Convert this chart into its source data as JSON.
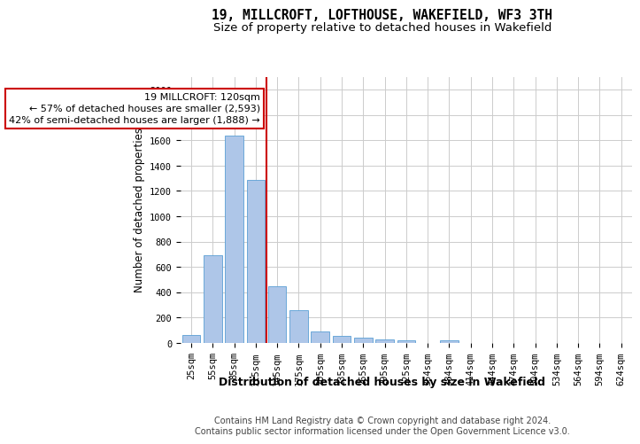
{
  "title": "19, MILLCROFT, LOFTHOUSE, WAKEFIELD, WF3 3TH",
  "subtitle": "Size of property relative to detached houses in Wakefield",
  "xlabel": "Distribution of detached houses by size in Wakefield",
  "ylabel": "Number of detached properties",
  "footer_line1": "Contains HM Land Registry data © Crown copyright and database right 2024.",
  "footer_line2": "Contains public sector information licensed under the Open Government Licence v3.0.",
  "annotation_line1": "19 MILLCROFT: 120sqm",
  "annotation_line2": "← 57% of detached houses are smaller (2,593)",
  "annotation_line3": "42% of semi-detached houses are larger (1,888) →",
  "bar_values": [
    65,
    695,
    1635,
    1285,
    445,
    255,
    90,
    55,
    40,
    30,
    20,
    0,
    20,
    0,
    0,
    0,
    0,
    0,
    0,
    0
  ],
  "bin_labels": [
    "25sqm",
    "55sqm",
    "85sqm",
    "115sqm",
    "145sqm",
    "175sqm",
    "205sqm",
    "235sqm",
    "265sqm",
    "295sqm",
    "325sqm",
    "354sqm",
    "384sqm",
    "414sqm",
    "444sqm",
    "474sqm",
    "504sqm",
    "534sqm",
    "564sqm",
    "594sqm",
    "624sqm"
  ],
  "bar_color": "#aec6e8",
  "bar_edge_color": "#5a9fd4",
  "vline_color": "#cc0000",
  "annotation_box_edgecolor": "#cc0000",
  "grid_color": "#cccccc",
  "background_color": "#ffffff",
  "ylim": [
    0,
    2100
  ],
  "yticks": [
    0,
    200,
    400,
    600,
    800,
    1000,
    1200,
    1400,
    1600,
    1800,
    2000
  ],
  "title_fontsize": 10.5,
  "subtitle_fontsize": 9.5,
  "ylabel_fontsize": 8.5,
  "xlabel_fontsize": 9,
  "tick_fontsize": 7.5,
  "footer_fontsize": 7,
  "annotation_fontsize": 8
}
